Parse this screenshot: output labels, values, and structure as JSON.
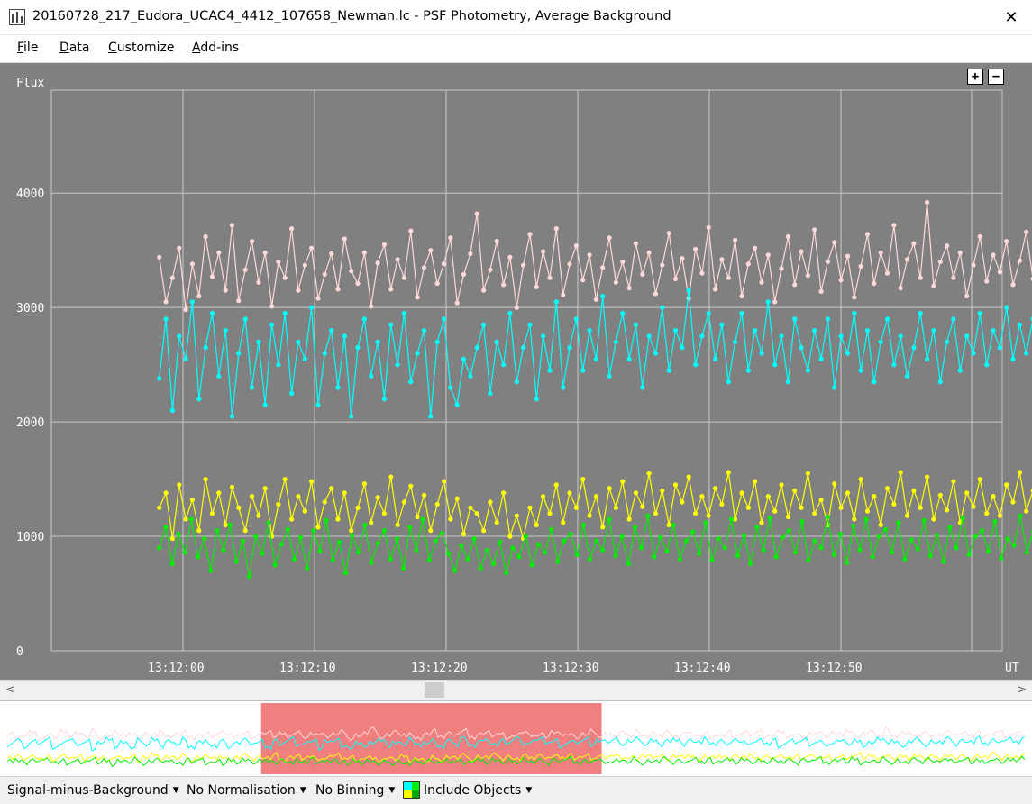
{
  "window": {
    "title": "20160728_217_Eudora_UCAC4_4412_107658_Newman.lc - PSF Photometry, Average Background",
    "app_icon": "lightcurve-app-icon",
    "close_glyph": "✕"
  },
  "menu": [
    "File",
    "Data",
    "Customize",
    "Add-ins"
  ],
  "zoom": {
    "plus": "+",
    "minus": "−"
  },
  "scrollbar": {
    "left_arrow": "<",
    "right_arrow": ">"
  },
  "status": {
    "signal_mode": "Signal-minus-Background",
    "normalisation": "No Normalisation",
    "binning": "No Binning",
    "include_objects": "Include Objects"
  },
  "colors": {
    "plot_background": "#808080",
    "grid": "#c8c8c8",
    "axis_text": "#ffffff",
    "overview_selection": "#f08080"
  },
  "chart_data": {
    "type": "line",
    "ylabel": "Flux",
    "xlabel": "UT",
    "x_axis_unit": "UT",
    "ylim": [
      0,
      4900
    ],
    "x_range_seconds": [
      12.0,
      13.1
    ],
    "x_ticks": [
      "13:12:00",
      "13:12:10",
      "13:12:20",
      "13:12:30",
      "13:12:40",
      "13:12:50"
    ],
    "y_ticks": [
      0,
      1000,
      2000,
      3000,
      4000
    ],
    "grid": true,
    "markers": true,
    "series": [
      {
        "color": "#ffd8d8",
        "values": [
          3440,
          3050,
          3260,
          3520,
          2980,
          3380,
          3100,
          3620,
          3270,
          3480,
          3150,
          3720,
          3060,
          3330,
          3580,
          3220,
          3480,
          3010,
          3400,
          3260,
          3690,
          3150,
          3370,
          3520,
          3080,
          3290,
          3470,
          3160,
          3600,
          3320,
          3210,
          3480,
          3010,
          3390,
          3550,
          3160,
          3420,
          3260,
          3670,
          3090,
          3350,
          3500,
          3210,
          3380,
          3610,
          3040,
          3290,
          3470,
          3820,
          3150,
          3330,
          3580,
          3200,
          3440,
          3000,
          3370,
          3640,
          3180,
          3490,
          3260,
          3690,
          3110,
          3380,
          3540,
          3240,
          3460,
          3070,
          3350,
          3610,
          3220,
          3400,
          3170,
          3560,
          3290,
          3480,
          3120,
          3370,
          3650,
          3250,
          3430,
          3080,
          3510,
          3300,
          3700,
          3160,
          3420,
          3260,
          3590,
          3100,
          3380,
          3520,
          3220,
          3460,
          3050,
          3340,
          3620,
          3200,
          3490,
          3280,
          3680,
          3140,
          3400,
          3570,
          3240,
          3450,
          3090,
          3360,
          3640,
          3210,
          3480,
          3300,
          3720,
          3170,
          3420,
          3560,
          3260,
          3920,
          3190,
          3400,
          3540,
          3260,
          3480,
          3100,
          3370,
          3620,
          3230,
          3460,
          3310,
          3580,
          3200,
          3410,
          3660,
          3250,
          3500,
          3380
        ],
        "x_start": "13:11:58.2",
        "x_end": "13:13:05.6"
      },
      {
        "color": "#00ffff",
        "values": [
          2380,
          2900,
          2100,
          2750,
          2550,
          3050,
          2200,
          2650,
          2950,
          2400,
          2800,
          2050,
          2600,
          2900,
          2300,
          2700,
          2150,
          2850,
          2500,
          2950,
          2250,
          2700,
          2550,
          3000,
          2150,
          2600,
          2800,
          2300,
          2750,
          2050,
          2650,
          2900,
          2400,
          2700,
          2200,
          2850,
          2500,
          2950,
          2350,
          2600,
          2800,
          2050,
          2700,
          2900,
          2300,
          2150,
          2550,
          2400,
          2650,
          2850,
          2250,
          2700,
          2500,
          2950,
          2350,
          2650,
          2850,
          2200,
          2750,
          2450,
          3050,
          2300,
          2650,
          2900,
          2450,
          2800,
          2550,
          3100,
          2400,
          2700,
          2950,
          2550,
          2850,
          2300,
          2750,
          2600,
          3000,
          2450,
          2800,
          2650,
          3150,
          2500,
          2750,
          2950,
          2550,
          2850,
          2350,
          2700,
          2950,
          2450,
          2800,
          2600,
          3050,
          2500,
          2750,
          2350,
          2900,
          2650,
          2450,
          2800,
          2550,
          2900,
          2300,
          2750,
          2600,
          2950,
          2450,
          2800,
          2350,
          2700,
          2900,
          2500,
          2750,
          2400,
          2650,
          2950,
          2550,
          2800,
          2350,
          2700,
          2900,
          2450,
          2750,
          2600,
          2950,
          2500,
          2800,
          2650,
          3000,
          2550,
          2850,
          2600,
          2900,
          2700,
          3050
        ],
        "x_start": "13:11:58.2",
        "x_end": "13:13:05.6"
      },
      {
        "color": "#ffff00",
        "values": [
          1250,
          1380,
          980,
          1450,
          1150,
          1320,
          1050,
          1500,
          1200,
          1380,
          1100,
          1430,
          1250,
          1050,
          1350,
          1180,
          1420,
          1000,
          1280,
          1500,
          1150,
          1350,
          1220,
          1480,
          1080,
          1300,
          1420,
          1150,
          1380,
          1050,
          1250,
          1460,
          1120,
          1340,
          1200,
          1520,
          1100,
          1300,
          1440,
          1170,
          1360,
          1050,
          1280,
          1480,
          1150,
          1330,
          1020,
          1250,
          1200,
          1050,
          1300,
          1120,
          1380,
          1000,
          1180,
          980,
          1250,
          1100,
          1350,
          1200,
          1450,
          1120,
          1380,
          1250,
          1500,
          1180,
          1350,
          1080,
          1420,
          1250,
          1480,
          1150,
          1380,
          1260,
          1550,
          1200,
          1400,
          1100,
          1450,
          1300,
          1520,
          1200,
          1350,
          1180,
          1420,
          1280,
          1560,
          1150,
          1380,
          1250,
          1480,
          1120,
          1350,
          1220,
          1450,
          1170,
          1400,
          1250,
          1550,
          1200,
          1320,
          1100,
          1460,
          1250,
          1380,
          1150,
          1500,
          1220,
          1350,
          1100,
          1420,
          1280,
          1560,
          1180,
          1400,
          1250,
          1520,
          1150,
          1360,
          1230,
          1480,
          1120,
          1380,
          1260,
          1500,
          1200,
          1350,
          1180,
          1450,
          1300,
          1560,
          1220,
          1400,
          1250,
          1480
        ],
        "x_start": "13:11:58.2",
        "x_end": "13:13:05.6"
      },
      {
        "color": "#00ee00",
        "values": [
          900,
          1080,
          760,
          1020,
          860,
          1150,
          820,
          980,
          700,
          1050,
          880,
          1100,
          780,
          960,
          650,
          1000,
          850,
          1120,
          750,
          930,
          1060,
          800,
          990,
          720,
          1050,
          870,
          1140,
          790,
          950,
          680,
          1010,
          860,
          1100,
          770,
          940,
          1050,
          800,
          980,
          720,
          1080,
          880,
          1150,
          790,
          960,
          1030,
          850,
          700,
          920,
          800,
          980,
          720,
          880,
          760,
          950,
          680,
          900,
          820,
          1000,
          750,
          930,
          860,
          1060,
          780,
          960,
          1020,
          840,
          1100,
          800,
          960,
          880,
          1150,
          830,
          1000,
          760,
          1080,
          900,
          1180,
          820,
          990,
          870,
          1100,
          800,
          960,
          1040,
          850,
          1120,
          790,
          980,
          900,
          1150,
          830,
          1010,
          760,
          1080,
          880,
          1160,
          820,
          990,
          1050,
          860,
          1130,
          790,
          960,
          900,
          1170,
          840,
          1020,
          770,
          1090,
          880,
          1150,
          820,
          1000,
          1060,
          860,
          1120,
          800,
          970,
          890,
          1140,
          830,
          1010,
          780,
          1080,
          900,
          1160,
          840,
          1000,
          1050,
          870,
          1130,
          810,
          980,
          920,
          1180,
          860,
          1040,
          1100,
          1250
        ],
        "x_start": "13:11:58.2",
        "x_end": "13:13:05.6"
      }
    ]
  },
  "overview": {
    "selection_start_fraction": 0.253,
    "selection_end_fraction": 0.583
  }
}
